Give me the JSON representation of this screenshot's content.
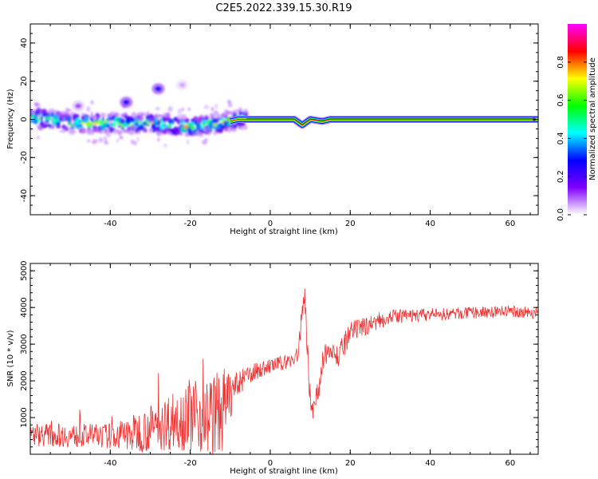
{
  "chart_data": [
    {
      "type": "heatmap",
      "title": "C2E5.2022.339.15.30.R19",
      "xlabel": "Height of straight line (km)",
      "ylabel": "Frequency (Hz)",
      "xlim": [
        -60,
        67
      ],
      "ylim": [
        -50,
        50
      ],
      "xticks": [
        -40,
        -20,
        0,
        20,
        40,
        60
      ],
      "yticks": [
        -40,
        -20,
        0,
        20,
        40
      ],
      "colorbar": {
        "label": "Normalized spectral amplitude",
        "range": [
          0,
          1
        ],
        "ticks": [
          0.0,
          0.2,
          0.4,
          0.6,
          0.8
        ],
        "colormap": [
          "#ffffff",
          "#7f00ff",
          "#0000ff",
          "#00ffff",
          "#00ff00",
          "#ffff00",
          "#ff0000",
          "#ff00ff"
        ]
      },
      "features": {
        "dominant_frequency_hz": 0,
        "main_band_center": [
          {
            "x": -58,
            "y": 0.5
          },
          {
            "x": -50,
            "y": -2
          },
          {
            "x": -40,
            "y": -2
          },
          {
            "x": -30,
            "y": -2
          },
          {
            "x": -20,
            "y": -4
          },
          {
            "x": -12,
            "y": -2
          },
          {
            "x": -8,
            "y": 0
          },
          {
            "x": 0,
            "y": 0
          },
          {
            "x": 6,
            "y": 0
          },
          {
            "x": 8,
            "y": -3
          },
          {
            "x": 10,
            "y": 0
          },
          {
            "x": 13,
            "y": -1
          },
          {
            "x": 15,
            "y": 0
          },
          {
            "x": 67,
            "y": 0
          }
        ],
        "blobs": [
          {
            "x": -36,
            "y": 9,
            "amp": 0.3
          },
          {
            "x": -28,
            "y": 16,
            "amp": 0.3
          },
          {
            "x": -48,
            "y": 7,
            "amp": 0.1
          },
          {
            "x": -22,
            "y": 18,
            "amp": 0.05
          }
        ]
      }
    },
    {
      "type": "line",
      "title": "",
      "xlabel": "Height of straight line (km)",
      "ylabel": "SNR (10 * v/v)",
      "xlim": [
        -60,
        67
      ],
      "ylim": [
        0,
        5200
      ],
      "xticks": [
        -40,
        -20,
        0,
        20,
        40,
        60
      ],
      "yticks": [
        1000,
        2000,
        3000,
        4000,
        5000
      ],
      "color": "#ee3333",
      "envelope": [
        {
          "x": -60,
          "mean": 550,
          "spread": 320
        },
        {
          "x": -50,
          "mean": 500,
          "spread": 320
        },
        {
          "x": -40,
          "mean": 500,
          "spread": 350
        },
        {
          "x": -35,
          "mean": 550,
          "spread": 500
        },
        {
          "x": -30,
          "mean": 700,
          "spread": 650
        },
        {
          "x": -25,
          "mean": 900,
          "spread": 800
        },
        {
          "x": -20,
          "mean": 1100,
          "spread": 1000
        },
        {
          "x": -15,
          "mean": 1000,
          "spread": 1100
        },
        {
          "x": -12,
          "mean": 1200,
          "spread": 1200
        },
        {
          "x": -9,
          "mean": 1800,
          "spread": 400
        },
        {
          "x": -5,
          "mean": 2200,
          "spread": 250
        },
        {
          "x": 0,
          "mean": 2400,
          "spread": 200
        },
        {
          "x": 5,
          "mean": 2550,
          "spread": 200
        },
        {
          "x": 7,
          "mean": 2700,
          "spread": 250
        },
        {
          "x": 8.5,
          "mean": 4500,
          "spread": 400
        },
        {
          "x": 10,
          "mean": 1500,
          "spread": 400
        },
        {
          "x": 11,
          "mean": 1200,
          "spread": 300
        },
        {
          "x": 13,
          "mean": 2400,
          "spread": 400
        },
        {
          "x": 15,
          "mean": 3000,
          "spread": 300
        },
        {
          "x": 17,
          "mean": 2600,
          "spread": 400
        },
        {
          "x": 20,
          "mean": 3300,
          "spread": 300
        },
        {
          "x": 25,
          "mean": 3550,
          "spread": 250
        },
        {
          "x": 30,
          "mean": 3750,
          "spread": 200
        },
        {
          "x": 40,
          "mean": 3800,
          "spread": 180
        },
        {
          "x": 50,
          "mean": 3850,
          "spread": 160
        },
        {
          "x": 60,
          "mean": 3900,
          "spread": 160
        },
        {
          "x": 67,
          "mean": 3850,
          "spread": 160
        }
      ]
    }
  ]
}
